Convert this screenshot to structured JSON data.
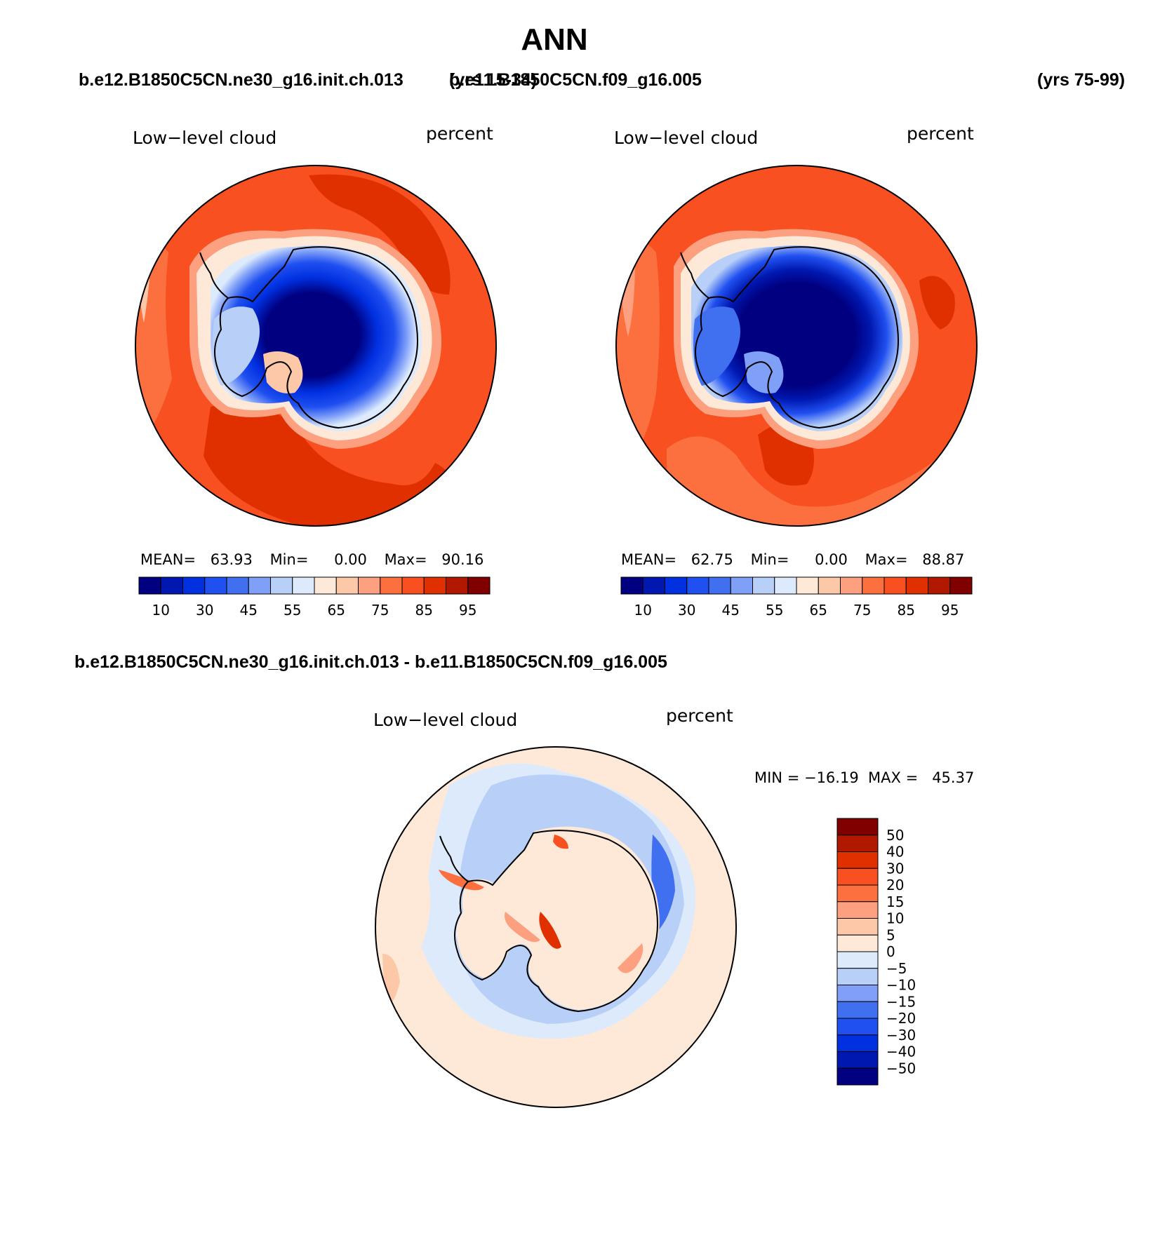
{
  "title": "ANN",
  "case_a": {
    "name": "b.e12.B1850C5CN.ne30_g16.init.ch.013",
    "years": "(yrs 15-34)"
  },
  "case_b": {
    "name": "b.e11.B1850C5CN.f09_g16.005",
    "years": "(yrs 75-99)"
  },
  "diff_title": "b.e12.B1850C5CN.ne30_g16.init.ch.013 - b.e11.B1850C5CN.f09_g16.005",
  "panels": [
    {
      "id": "panel-a",
      "variable": "Low−level cloud",
      "units": "percent",
      "stats": {
        "mean_label": "MEAN=",
        "mean": "63.93",
        "min_label": "Min=",
        "min": "0.00",
        "max_label": "Max=",
        "max": "90.16"
      },
      "level_labels": [
        "10",
        "30",
        "45",
        "55",
        "65",
        "75",
        "85",
        "95"
      ]
    },
    {
      "id": "panel-b",
      "variable": "Low−level cloud",
      "units": "percent",
      "stats": {
        "mean_label": "MEAN=",
        "mean": "62.75",
        "min_label": "Min=",
        "min": "0.00",
        "max_label": "Max=",
        "max": "88.87"
      },
      "level_labels": [
        "10",
        "30",
        "45",
        "55",
        "65",
        "75",
        "85",
        "95"
      ]
    }
  ],
  "diff_panel": {
    "variable": "Low−level cloud",
    "units": "percent",
    "stats_text": "MIN = −16.19  MAX =   45.37",
    "level_labels": [
      "50",
      "40",
      "30",
      "20",
      "15",
      "10",
      "5",
      "0",
      "−5",
      "−10",
      "−15",
      "−20",
      "−30",
      "−40",
      "−50"
    ]
  },
  "colors": {
    "abs_scale": [
      "#000080",
      "#0018b0",
      "#0030e0",
      "#2050f0",
      "#4070f0",
      "#80a0f8",
      "#b8d0f8",
      "#dceafc",
      "#fee9d8",
      "#fdc8a8",
      "#fca080",
      "#fc7040",
      "#f85020",
      "#e03000",
      "#b01800",
      "#800000"
    ],
    "diff_scale": [
      "#800000",
      "#b01800",
      "#e03000",
      "#f85020",
      "#fc7040",
      "#fca080",
      "#fdc8a8",
      "#fee9d8",
      "#dceafc",
      "#b8d0f8",
      "#80a0f8",
      "#4070f0",
      "#2050f0",
      "#0030e0",
      "#0018b0",
      "#000080"
    ]
  },
  "chart_data": [
    {
      "type": "heatmap",
      "title": "b.e12.B1850C5CN.ne30_g16.init.ch.013 (yrs 15-34)",
      "variable": "Low-level cloud",
      "units": "percent",
      "projection": "south polar stereographic",
      "mean": 63.93,
      "min": 0.0,
      "max": 90.16,
      "contour_levels": [
        5,
        10,
        20,
        30,
        40,
        45,
        50,
        55,
        60,
        65,
        70,
        75,
        80,
        85,
        90,
        95
      ]
    },
    {
      "type": "heatmap",
      "title": "b.e11.B1850C5CN.f09_g16.005 (yrs 75-99)",
      "variable": "Low-level cloud",
      "units": "percent",
      "projection": "south polar stereographic",
      "mean": 62.75,
      "min": 0.0,
      "max": 88.87,
      "contour_levels": [
        5,
        10,
        20,
        30,
        40,
        45,
        50,
        55,
        60,
        65,
        70,
        75,
        80,
        85,
        90,
        95
      ]
    },
    {
      "type": "heatmap",
      "title": "b.e12.B1850C5CN.ne30_g16.init.ch.013 - b.e11.B1850C5CN.f09_g16.005",
      "variable": "Low-level cloud",
      "units": "percent",
      "projection": "south polar stereographic",
      "min": -16.19,
      "max": 45.37,
      "contour_levels": [
        -50,
        -40,
        -30,
        -20,
        -15,
        -10,
        -5,
        0,
        5,
        10,
        15,
        20,
        30,
        40,
        50
      ]
    }
  ]
}
